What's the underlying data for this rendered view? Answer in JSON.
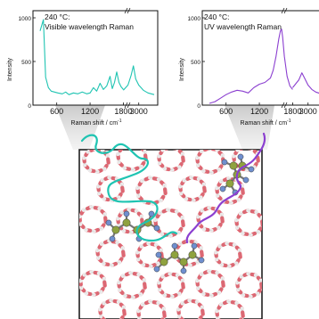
{
  "colors": {
    "visible": "#1fc4b2",
    "uv": "#8b3fd0",
    "zeolite_red": "#e06470",
    "zeolite_white": "#ececec",
    "carbon": "#8fa23f",
    "hydrogen": "#6f8fcf",
    "frame": "#111111"
  },
  "chart_data": [
    {
      "type": "line",
      "panel": "left",
      "annotation_line1": "240 °C:",
      "annotation_line2": "Visible wavelength Raman",
      "xlabel": "Raman shift / cm",
      "xlabel_sup": "-1",
      "ylabel": "Intensity",
      "x_ticks": [
        "600",
        "1200",
        "1800",
        "3000"
      ],
      "y_ticks": [
        "0",
        "500",
        "1000"
      ],
      "ylim": [
        0,
        1000
      ],
      "series": [
        {
          "color_key": "visible",
          "x": [
            300,
            360,
            400,
            450,
            500,
            560,
            620,
            700,
            760,
            820,
            900,
            980,
            1060,
            1140,
            1200,
            1260,
            1320,
            1380,
            1440,
            1500,
            1560,
            1600,
            1640,
            1680,
            1720,
            1760,
            1800,
            2800,
            2860,
            2900,
            2930,
            2960,
            3000,
            3060,
            3120,
            3200
          ],
          "y": [
            850,
            980,
            320,
            200,
            160,
            150,
            140,
            130,
            150,
            120,
            140,
            130,
            150,
            130,
            140,
            200,
            160,
            250,
            180,
            220,
            330,
            190,
            260,
            380,
            260,
            210,
            180,
            170,
            230,
            340,
            450,
            300,
            230,
            170,
            140,
            120
          ]
        }
      ]
    },
    {
      "type": "line",
      "panel": "right",
      "annotation_line1": "240 °C:",
      "annotation_line2": "UV wavelength Raman",
      "xlabel": "Raman shift / cm",
      "xlabel_sup": "-1",
      "ylabel": "Intensity",
      "x_ticks": [
        "600",
        "1200",
        "1800",
        "3000"
      ],
      "y_ticks": [
        "0",
        "500",
        "1000"
      ],
      "ylim": [
        0,
        1000
      ],
      "series": [
        {
          "color_key": "uv",
          "x": [
            300,
            400,
            500,
            600,
            700,
            800,
            900,
            1000,
            1100,
            1200,
            1300,
            1400,
            1450,
            1500,
            1550,
            1580,
            1600,
            1620,
            1650,
            1700,
            1750,
            1800,
            2800,
            2880,
            2920,
            2960,
            3000,
            3050,
            3100,
            3200
          ],
          "y": [
            20,
            40,
            80,
            120,
            150,
            170,
            160,
            140,
            200,
            240,
            260,
            310,
            400,
            560,
            760,
            850,
            870,
            780,
            560,
            330,
            220,
            180,
            200,
            290,
            370,
            300,
            230,
            180,
            150,
            120
          ]
        }
      ]
    }
  ]
}
